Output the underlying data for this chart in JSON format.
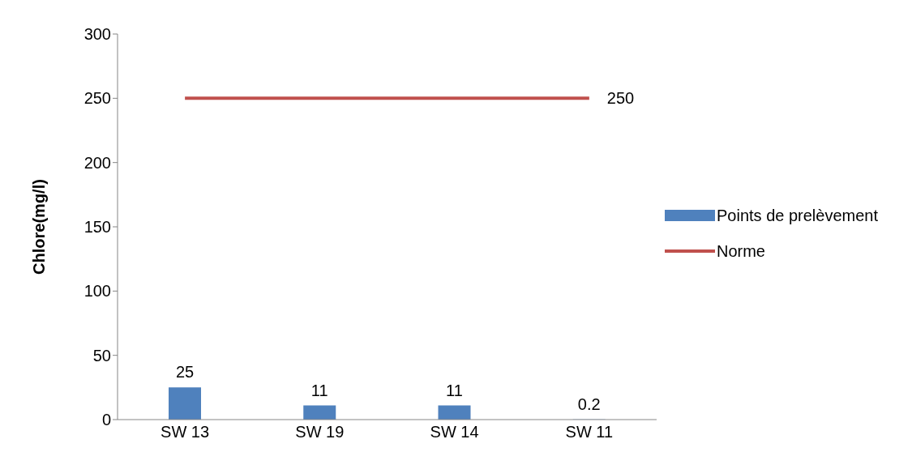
{
  "chart_data": {
    "type": "bar",
    "ylabel": "Chlore(mg/l)",
    "categories": [
      "SW 13",
      "SW 19",
      "SW 14",
      "SW 11"
    ],
    "series": [
      {
        "name": "Points de prelèvement",
        "color": "#4f81bd",
        "values": [
          25,
          11,
          11,
          0.2
        ],
        "value_labels": [
          "25",
          "11",
          "11",
          "0.2"
        ]
      },
      {
        "name": "Norme",
        "type": "line",
        "color": "#c0504d",
        "values": [
          250,
          250,
          250,
          250
        ],
        "value_labels": [
          null,
          null,
          null,
          "250"
        ]
      }
    ],
    "ylim": [
      0,
      300
    ],
    "yticks": [
      0,
      50,
      100,
      150,
      200,
      250,
      300
    ],
    "grid": false,
    "legend": "right",
    "marker": "none"
  }
}
